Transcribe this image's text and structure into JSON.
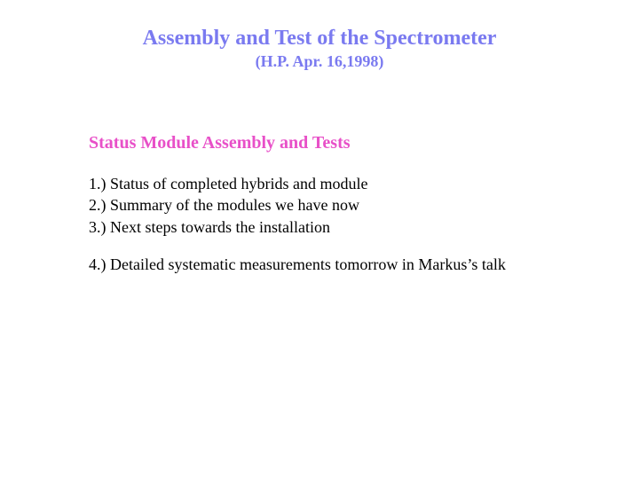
{
  "title": {
    "main": "Assembly and Test of the Spectrometer",
    "sub": "(H.P. Apr. 16,1998)",
    "color": "#7a7af0",
    "main_fontsize": 24,
    "sub_fontsize": 18
  },
  "section": {
    "heading": "Status Module Assembly and Tests",
    "heading_color": "#e850c8",
    "heading_fontsize": 20,
    "items": [
      "1.) Status of completed hybrids and module",
      "2.) Summary of the modules we have now",
      "3.) Next steps towards the installation",
      "4.) Detailed systematic measurements tomorrow in Markus’s talk"
    ],
    "item_color": "#000000",
    "item_fontsize": 18
  },
  "background_color": "#ffffff"
}
